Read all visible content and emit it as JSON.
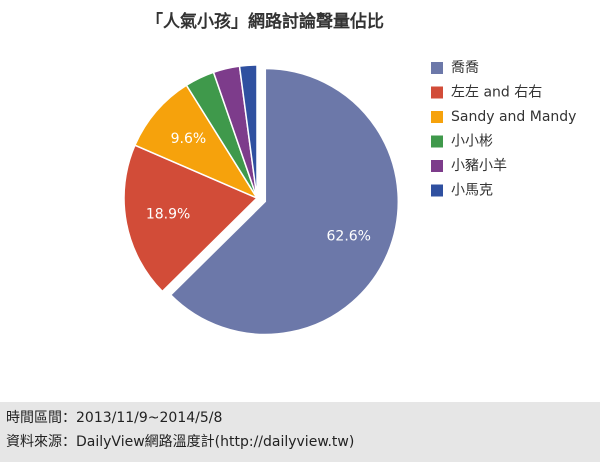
{
  "chart_data": {
    "type": "pie",
    "title": "「人氣小孩」網路討論聲量佔比",
    "categories": [
      "喬喬",
      "左左 and 右右",
      "Sandy and Mandy",
      "小小彬",
      "小豬小羊",
      "小馬克"
    ],
    "values": [
      62.6,
      18.9,
      9.6,
      3.6,
      3.2,
      2.1
    ],
    "value_labels": [
      "62.6%",
      "18.9%",
      "9.6%",
      null,
      null,
      null
    ],
    "colors": [
      "#6c78a9",
      "#d24c38",
      "#f6a20c",
      "#3f994b",
      "#7d3c8b",
      "#2f50a0"
    ],
    "explode": [
      true,
      false,
      false,
      false,
      false,
      false
    ],
    "legend": "right"
  },
  "footer": [
    "時間區間：2013/11/9~2014/5/8",
    "資料來源：DailyView網路溫度計(http://dailyview.tw)"
  ]
}
